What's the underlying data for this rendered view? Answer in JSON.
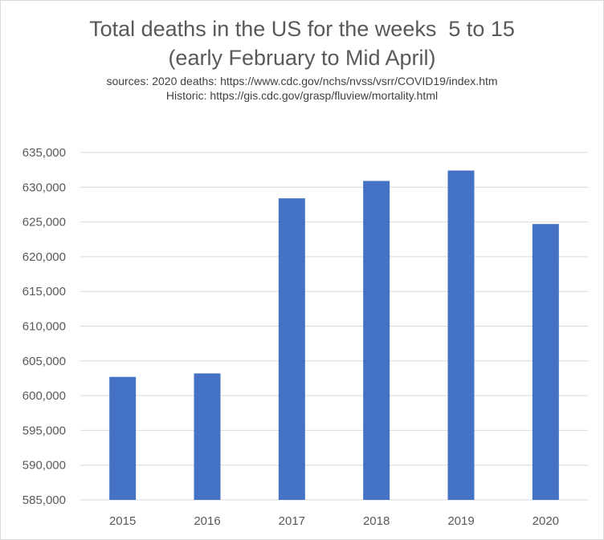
{
  "chart_data": {
    "type": "bar",
    "title_line1": "Total deaths in the US for the weeks  5 to 15",
    "title_line2": "(early February to Mid April)",
    "subtitle_line1": "sources: 2020 deaths: https://www.cdc.gov/nchs/nvss/vsrr/COVID19/index.htm",
    "subtitle_line2": "Historic: https://gis.cdc.gov/grasp/fluview/mortality.html",
    "categories": [
      "2015",
      "2016",
      "2017",
      "2018",
      "2019",
      "2020"
    ],
    "values": [
      602700,
      603200,
      628400,
      630900,
      632400,
      624700
    ],
    "ylim": [
      585000,
      635000
    ],
    "yticks": [
      585000,
      590000,
      595000,
      600000,
      605000,
      610000,
      615000,
      620000,
      625000,
      630000,
      635000
    ],
    "ytick_labels": [
      "585,000",
      "590,000",
      "595,000",
      "600,000",
      "605,000",
      "610,000",
      "615,000",
      "620,000",
      "625,000",
      "630,000",
      "635,000"
    ],
    "grid": true,
    "bar_color": "#4472c4",
    "grid_color": "#d9d9d9"
  }
}
